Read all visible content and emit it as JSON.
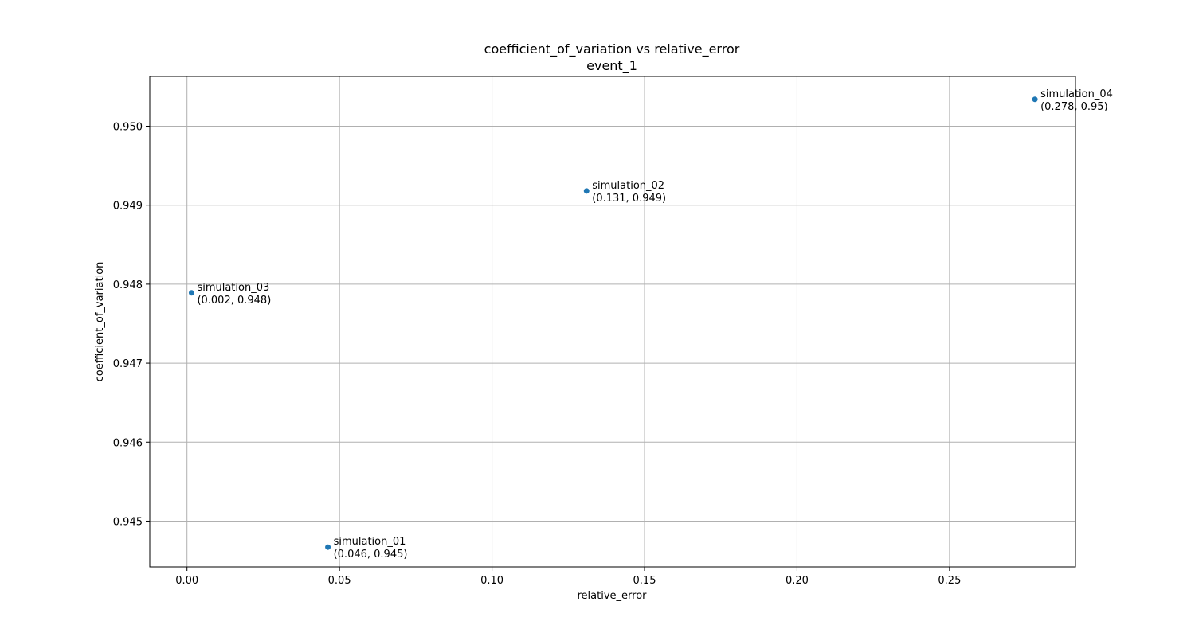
{
  "chart_data": {
    "type": "scatter",
    "title": "coefficient_of_variation vs relative_error",
    "subtitle": "event_1",
    "xlabel": "relative_error",
    "ylabel": "coefficient_of_variation",
    "xlim": [
      -0.0122,
      0.2913
    ],
    "ylim": [
      0.94442,
      0.95063
    ],
    "xticks": [
      0.0,
      0.05,
      0.1,
      0.15,
      0.2,
      0.25
    ],
    "xtick_labels": [
      "0.00",
      "0.05",
      "0.10",
      "0.15",
      "0.20",
      "0.25"
    ],
    "yticks": [
      0.945,
      0.946,
      0.947,
      0.948,
      0.949,
      0.95
    ],
    "ytick_labels": [
      "0.945",
      "0.946",
      "0.947",
      "0.948",
      "0.949",
      "0.950"
    ],
    "grid": true,
    "point_color": "#1f77b4",
    "points": [
      {
        "name": "simulation_01",
        "x": 0.0462,
        "y": 0.94467,
        "coord_label": "(0.046, 0.945)"
      },
      {
        "name": "simulation_02",
        "x": 0.131,
        "y": 0.94918,
        "coord_label": "(0.131, 0.949)"
      },
      {
        "name": "simulation_03",
        "x": 0.0015,
        "y": 0.94789,
        "coord_label": "(0.002, 0.948)"
      },
      {
        "name": "simulation_04",
        "x": 0.278,
        "y": 0.95034,
        "coord_label": "(0.278, 0.95)"
      }
    ]
  }
}
